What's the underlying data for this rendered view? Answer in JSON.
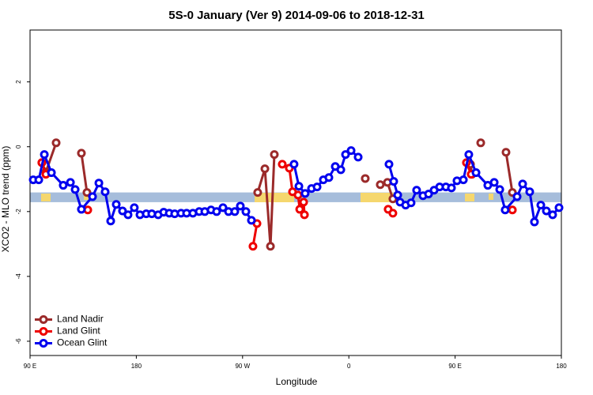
{
  "chart_data": {
    "type": "line",
    "title": "5S-0 January (Ver 9)   2014-09-06 to 2018-12-31",
    "x_label": "Longitude",
    "y_label": "XCO2 - MLO trend (ppm)",
    "xlim": [
      90,
      540
    ],
    "ylim": [
      -6.44,
      3.6
    ],
    "xticks": [
      {
        "value": 90,
        "label": "90 E"
      },
      180,
      {
        "value": 270,
        "label": "90 W"
      },
      {
        "value": 360,
        "label": "0"
      },
      {
        "value": 450,
        "label": "90 E"
      },
      {
        "value": 540,
        "label": "180"
      }
    ],
    "yticks": [
      -6,
      -4,
      -2,
      0,
      2
    ],
    "band": [
      -1.71,
      -1.41
    ],
    "band_color": "#a6bddb",
    "legend": "bottom-left",
    "series": [
      {
        "name": "Land Nadir",
        "color": "#9b2a2a",
        "x": [
          100.0,
          103.4,
          112.1,
          null,
          133.5,
          138.2,
          null,
          282.8,
          288.9,
          293.6,
          296.9,
          null,
          373.9,
          null,
          386.6,
          392.7,
          397.3,
          null,
          463.0,
          464.3,
          null,
          471.7,
          null,
          493.1,
          498.5
        ],
        "values": [
          -0.49,
          -0.78,
          0.12,
          null,
          -0.2,
          -1.41,
          null,
          -1.41,
          -0.68,
          -3.07,
          -0.24,
          null,
          -0.98,
          null,
          -1.17,
          -1.1,
          -1.61,
          null,
          -0.54,
          -0.85,
          null,
          0.12,
          null,
          -0.17,
          -1.41
        ]
      },
      {
        "name": "Land Glint",
        "color": "#ee0000",
        "x": [
          100.0,
          103.4,
          null,
          138.9,
          null,
          278.8,
          282.2,
          null,
          303.6,
          309.6,
          312.3,
          null,
          317.0,
          318.4,
          321.7,
          322.4,
          null,
          393.3,
          397.3,
          null,
          459.6,
          463.6,
          null,
          498.5
        ],
        "values": [
          -0.49,
          -0.85,
          null,
          -1.95,
          null,
          -3.07,
          -2.37,
          null,
          -0.54,
          -0.66,
          -1.39,
          null,
          -1.49,
          -1.93,
          -1.71,
          -2.1,
          null,
          -1.93,
          -2.05,
          null,
          -0.49,
          -0.85,
          null,
          -1.95
        ]
      },
      {
        "name": "Ocean Glint",
        "color": "#0000ee",
        "x": [
          92.7,
          97.4,
          102.1,
          108.1,
          118.1,
          124.2,
          128.2,
          133.5,
          142.9,
          148.3,
          153.6,
          158.3,
          163.0,
          168.3,
          173.0,
          178.3,
          183.1,
          188.4,
          193.1,
          198.5,
          203.2,
          207.9,
          212.5,
          217.9,
          222.6,
          227.9,
          233.3,
          238.0,
          243.3,
          248.0,
          253.4,
          258.1,
          263.4,
          268.1,
          272.8,
          277.5,
          null,
          313.6,
          317.7,
          323.0,
          328.4,
          333.1,
          338.4,
          343.1,
          348.5,
          353.2,
          357.2,
          361.9,
          367.9,
          null,
          394.0,
          398.0,
          401.4,
          403.4,
          408.1,
          412.7,
          417.4,
          422.8,
          427.5,
          432.2,
          436.9,
          442.2,
          446.9,
          451.6,
          457.0,
          461.6,
          467.7,
          477.7,
          483.1,
          487.8,
          492.4,
          502.5,
          507.2,
          513.2,
          517.2,
          522.6,
          527.3,
          532.6,
          538.0
        ],
        "values": [
          -1.02,
          -1.02,
          -0.24,
          -0.8,
          -1.19,
          -1.1,
          -1.32,
          -1.93,
          -1.54,
          -1.12,
          -1.39,
          -2.29,
          -1.78,
          -1.98,
          -2.1,
          -1.88,
          -2.1,
          -2.07,
          -2.07,
          -2.1,
          -2.02,
          -2.05,
          -2.07,
          -2.05,
          -2.05,
          -2.05,
          -2.0,
          -2.0,
          -1.95,
          -2.0,
          -1.88,
          -2.0,
          -2.0,
          -1.83,
          -2.0,
          -2.27,
          null,
          -0.54,
          -1.22,
          -1.44,
          -1.29,
          -1.24,
          -1.02,
          -0.95,
          -0.61,
          -0.71,
          -0.24,
          -0.12,
          -0.32,
          null,
          -0.54,
          -1.07,
          -1.49,
          -1.71,
          -1.8,
          -1.73,
          -1.34,
          -1.51,
          -1.46,
          -1.34,
          -1.24,
          -1.24,
          -1.27,
          -1.05,
          -1.02,
          -0.24,
          -0.8,
          -1.19,
          -1.1,
          -1.32,
          -1.95,
          -1.54,
          -1.15,
          -1.39,
          -2.32,
          -1.8,
          -1.98,
          -2.1,
          -1.88
        ]
      }
    ]
  }
}
